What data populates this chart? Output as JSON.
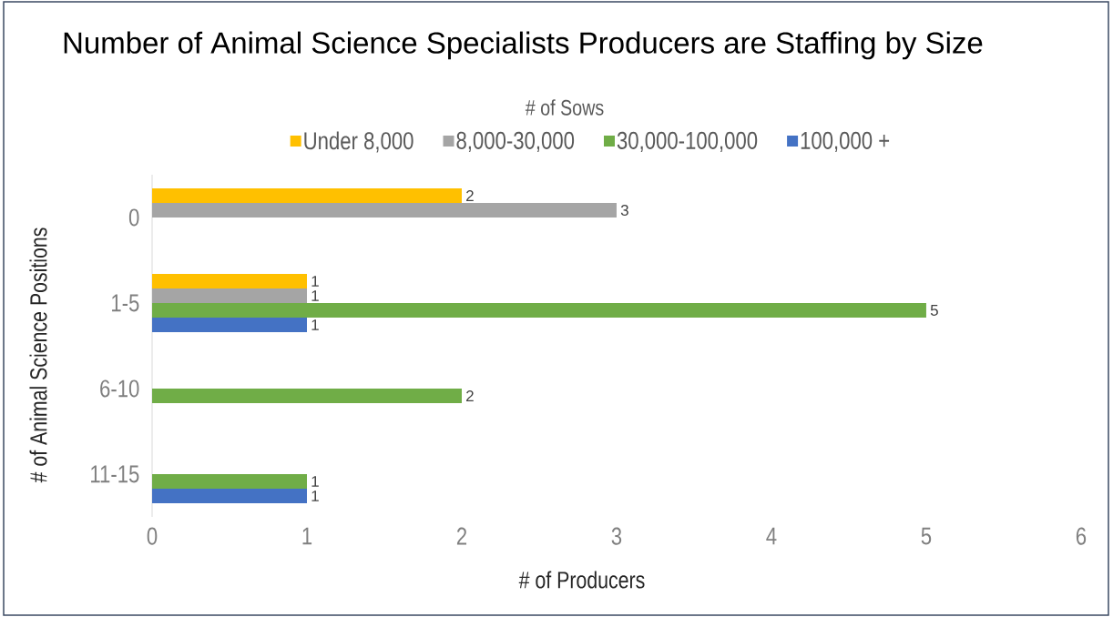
{
  "chart_data": {
    "type": "bar",
    "orientation": "horizontal",
    "title": "Number of Animal Science Specialists Producers are Staffing by Size",
    "xlabel": "# of Producers",
    "ylabel": "# of Animal Science Positions",
    "legend_title": "# of Sows",
    "categories": [
      "0",
      "1-5",
      "6-10",
      "11-15"
    ],
    "series": [
      {
        "name": "Under 8,000",
        "color": "#ffc000",
        "values": [
          2,
          1,
          null,
          null
        ]
      },
      {
        "name": "8,000-30,000",
        "color": "#a5a5a5",
        "values": [
          3,
          1,
          null,
          null
        ]
      },
      {
        "name": "30,000-100,000",
        "color": "#70ad47",
        "values": [
          null,
          5,
          2,
          1
        ]
      },
      {
        "name": "100,000 +",
        "color": "#4472c4",
        "values": [
          null,
          1,
          null,
          1
        ]
      }
    ],
    "xlim": [
      0,
      6
    ],
    "xticks": [
      0,
      1,
      2,
      3,
      4,
      5,
      6
    ],
    "data_labels": true,
    "legend": "top"
  }
}
